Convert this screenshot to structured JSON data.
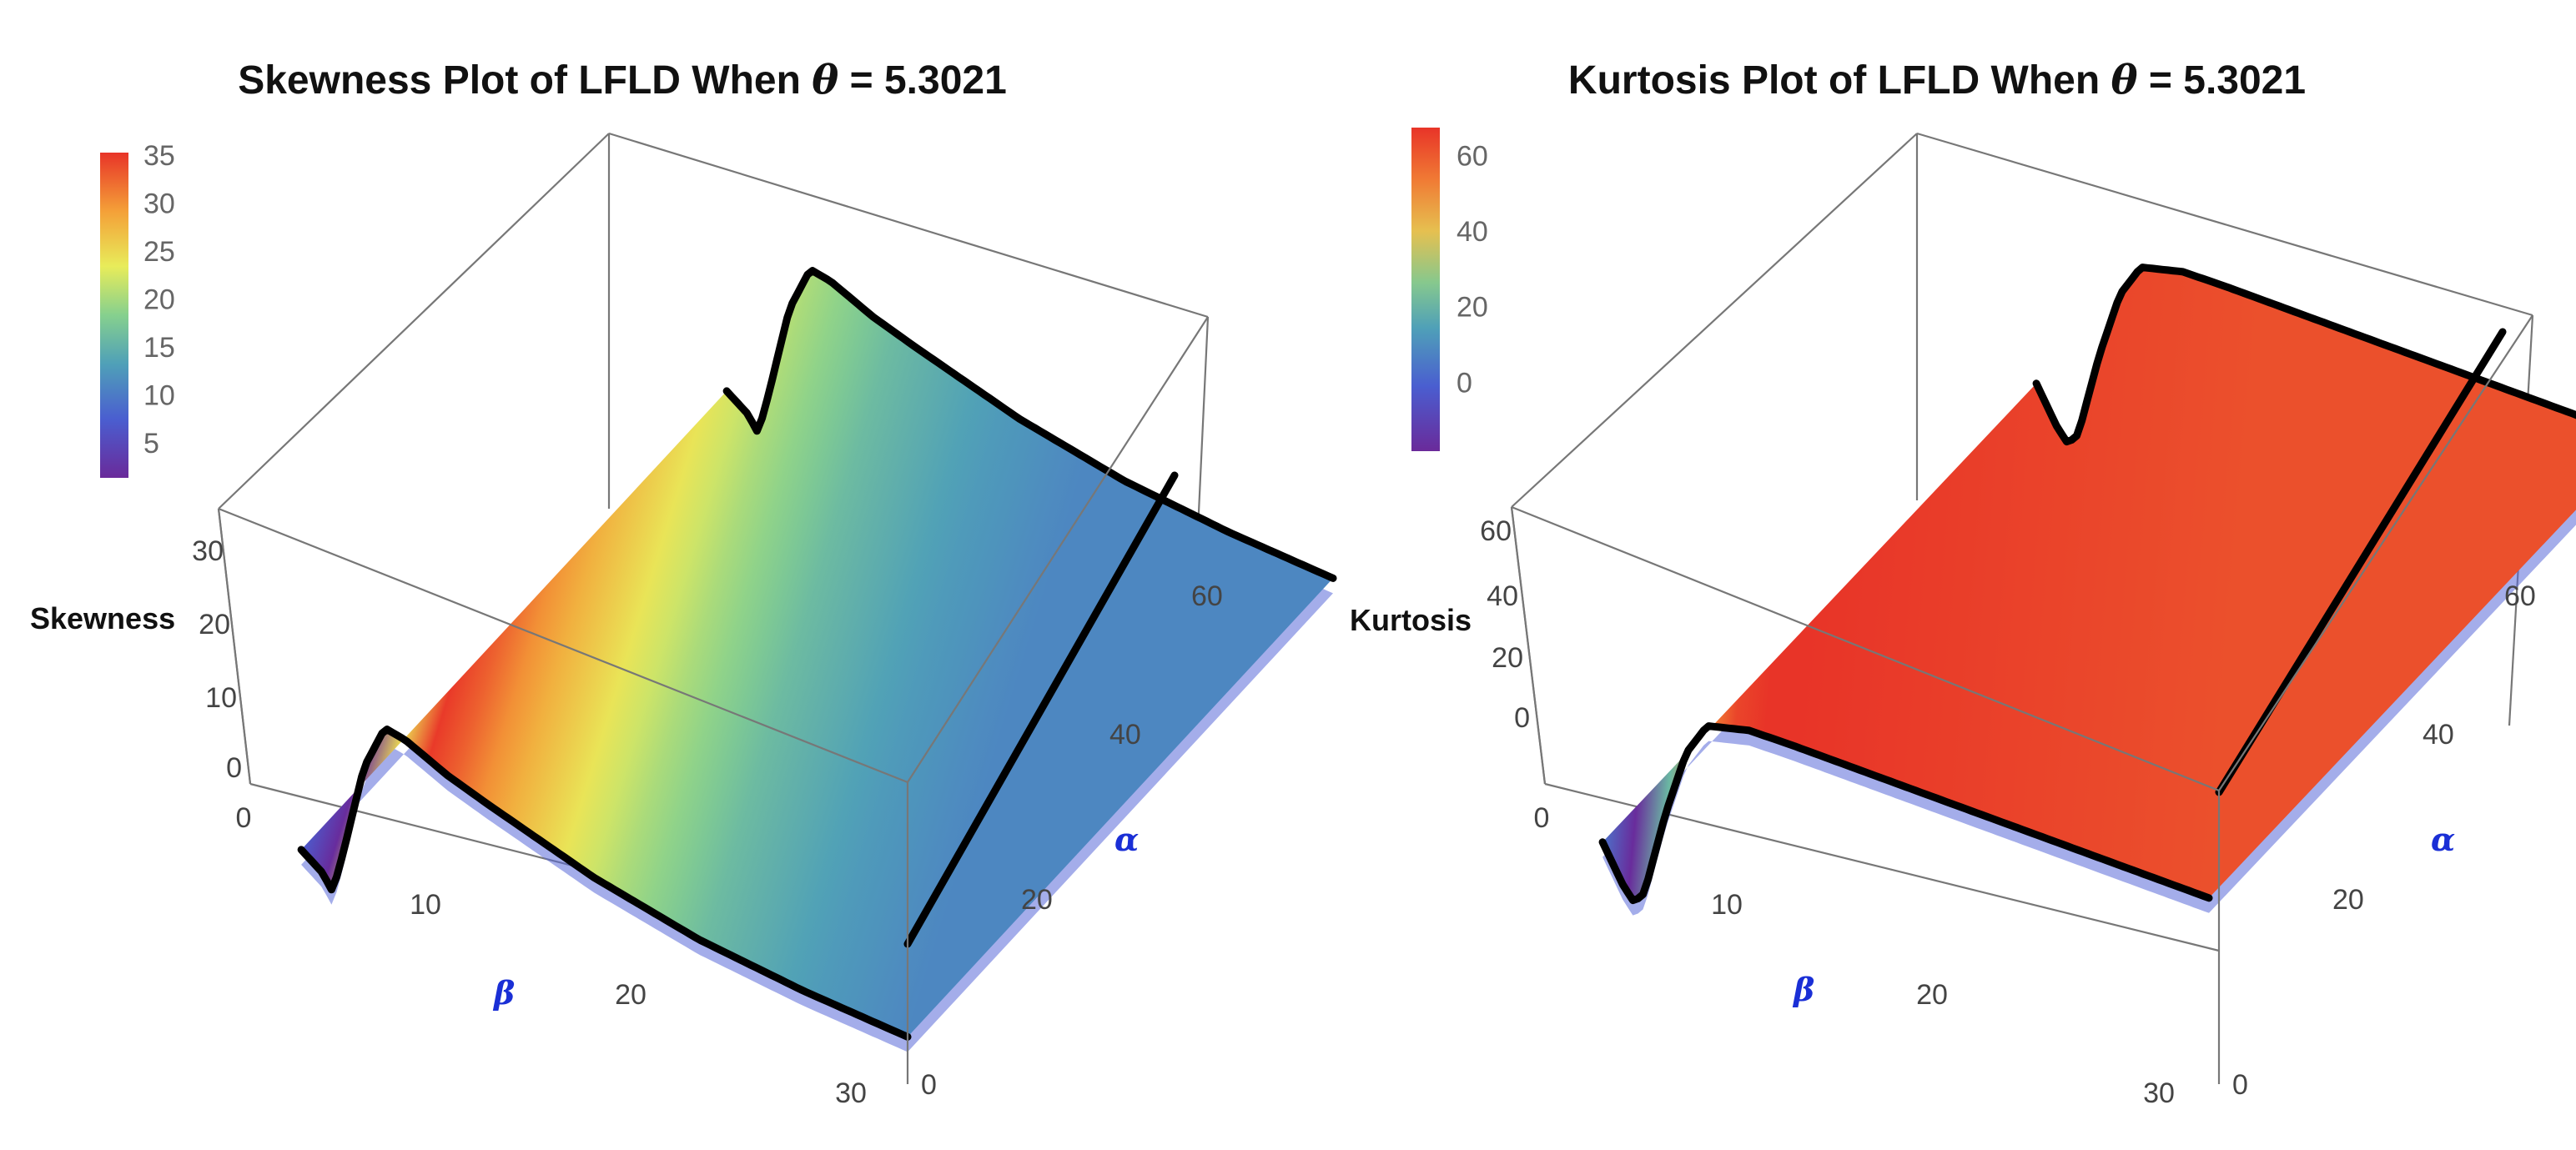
{
  "chart_data": [
    {
      "type": "surface3d",
      "title_prefix": "Skewness Plot of LFLD When ",
      "title_symbol": "θ",
      "title_suffix": " = 5.3021",
      "zlabel": "Skewness",
      "xlabel": "β",
      "ylabel": "α",
      "x_ticks": [
        "0",
        "10",
        "20",
        "30"
      ],
      "y_ticks": [
        "0",
        "20",
        "40",
        "60"
      ],
      "z_ticks": [
        "0",
        "10",
        "20",
        "30"
      ],
      "colorbar_ticks": [
        "5",
        "10",
        "15",
        "20",
        "25",
        "30",
        "35"
      ],
      "xlim": [
        0,
        30
      ],
      "ylim": [
        0,
        65
      ],
      "zlim": [
        -2,
        35
      ],
      "beta_profile": {
        "beta": [
          1,
          2,
          2.5,
          3,
          4,
          5,
          6,
          8,
          10,
          15,
          20,
          25,
          30
        ],
        "value": [
          6,
          3,
          0,
          8,
          26,
          35,
          34,
          30,
          27,
          20,
          15,
          12,
          10
        ]
      }
    },
    {
      "type": "surface3d",
      "title_prefix": "Kurtosis Plot of LFLD When ",
      "title_symbol": "θ",
      "title_suffix": " = 5.3021",
      "zlabel": "Kurtosis",
      "xlabel": "β",
      "ylabel": "α",
      "x_ticks": [
        "0",
        "10",
        "20",
        "30"
      ],
      "y_ticks": [
        "0",
        "20",
        "40",
        "60"
      ],
      "z_ticks": [
        "0",
        "20",
        "40",
        "60"
      ],
      "colorbar_ticks": [
        "0",
        "20",
        "40",
        "60"
      ],
      "xlim": [
        0,
        30
      ],
      "ylim": [
        0,
        65
      ],
      "zlim": [
        -20,
        65
      ],
      "beta_profile": {
        "beta": [
          1,
          2,
          2.5,
          3,
          4,
          5,
          6,
          8,
          10,
          15,
          20,
          25,
          30
        ],
        "value": [
          0,
          -15,
          -20,
          -15,
          20,
          48,
          62,
          66,
          66,
          65,
          64,
          63,
          62
        ]
      }
    }
  ]
}
